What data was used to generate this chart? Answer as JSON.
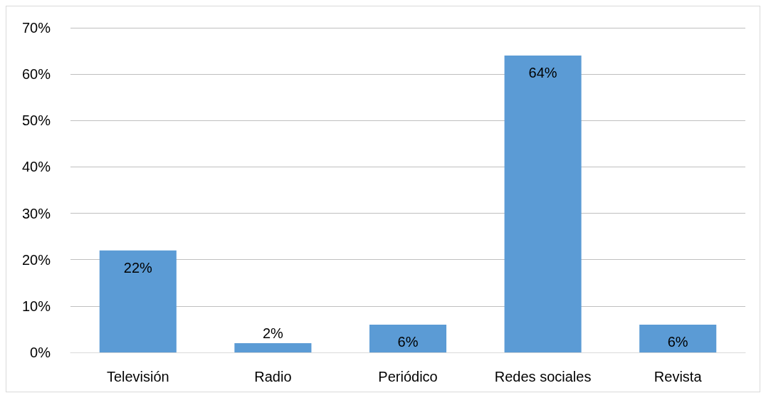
{
  "chart_data": {
    "type": "bar",
    "categories": [
      "Televisión",
      "Radio",
      "Periódico",
      "Redes sociales",
      "Revista"
    ],
    "values": [
      22,
      2,
      6,
      64,
      6
    ],
    "value_labels": [
      "22%",
      "2%",
      "6%",
      "64%",
      "6%"
    ],
    "color": "#5b9bd5",
    "ylim": [
      0,
      70
    ],
    "yticks": [
      {
        "value": 0,
        "label": "0%"
      },
      {
        "value": 10,
        "label": "10%"
      },
      {
        "value": 20,
        "label": "20%"
      },
      {
        "value": 30,
        "label": "30%"
      },
      {
        "value": 40,
        "label": "40%"
      },
      {
        "value": 50,
        "label": "50%"
      },
      {
        "value": 60,
        "label": "60%"
      },
      {
        "value": 70,
        "label": "70%"
      }
    ],
    "grid": "y"
  }
}
